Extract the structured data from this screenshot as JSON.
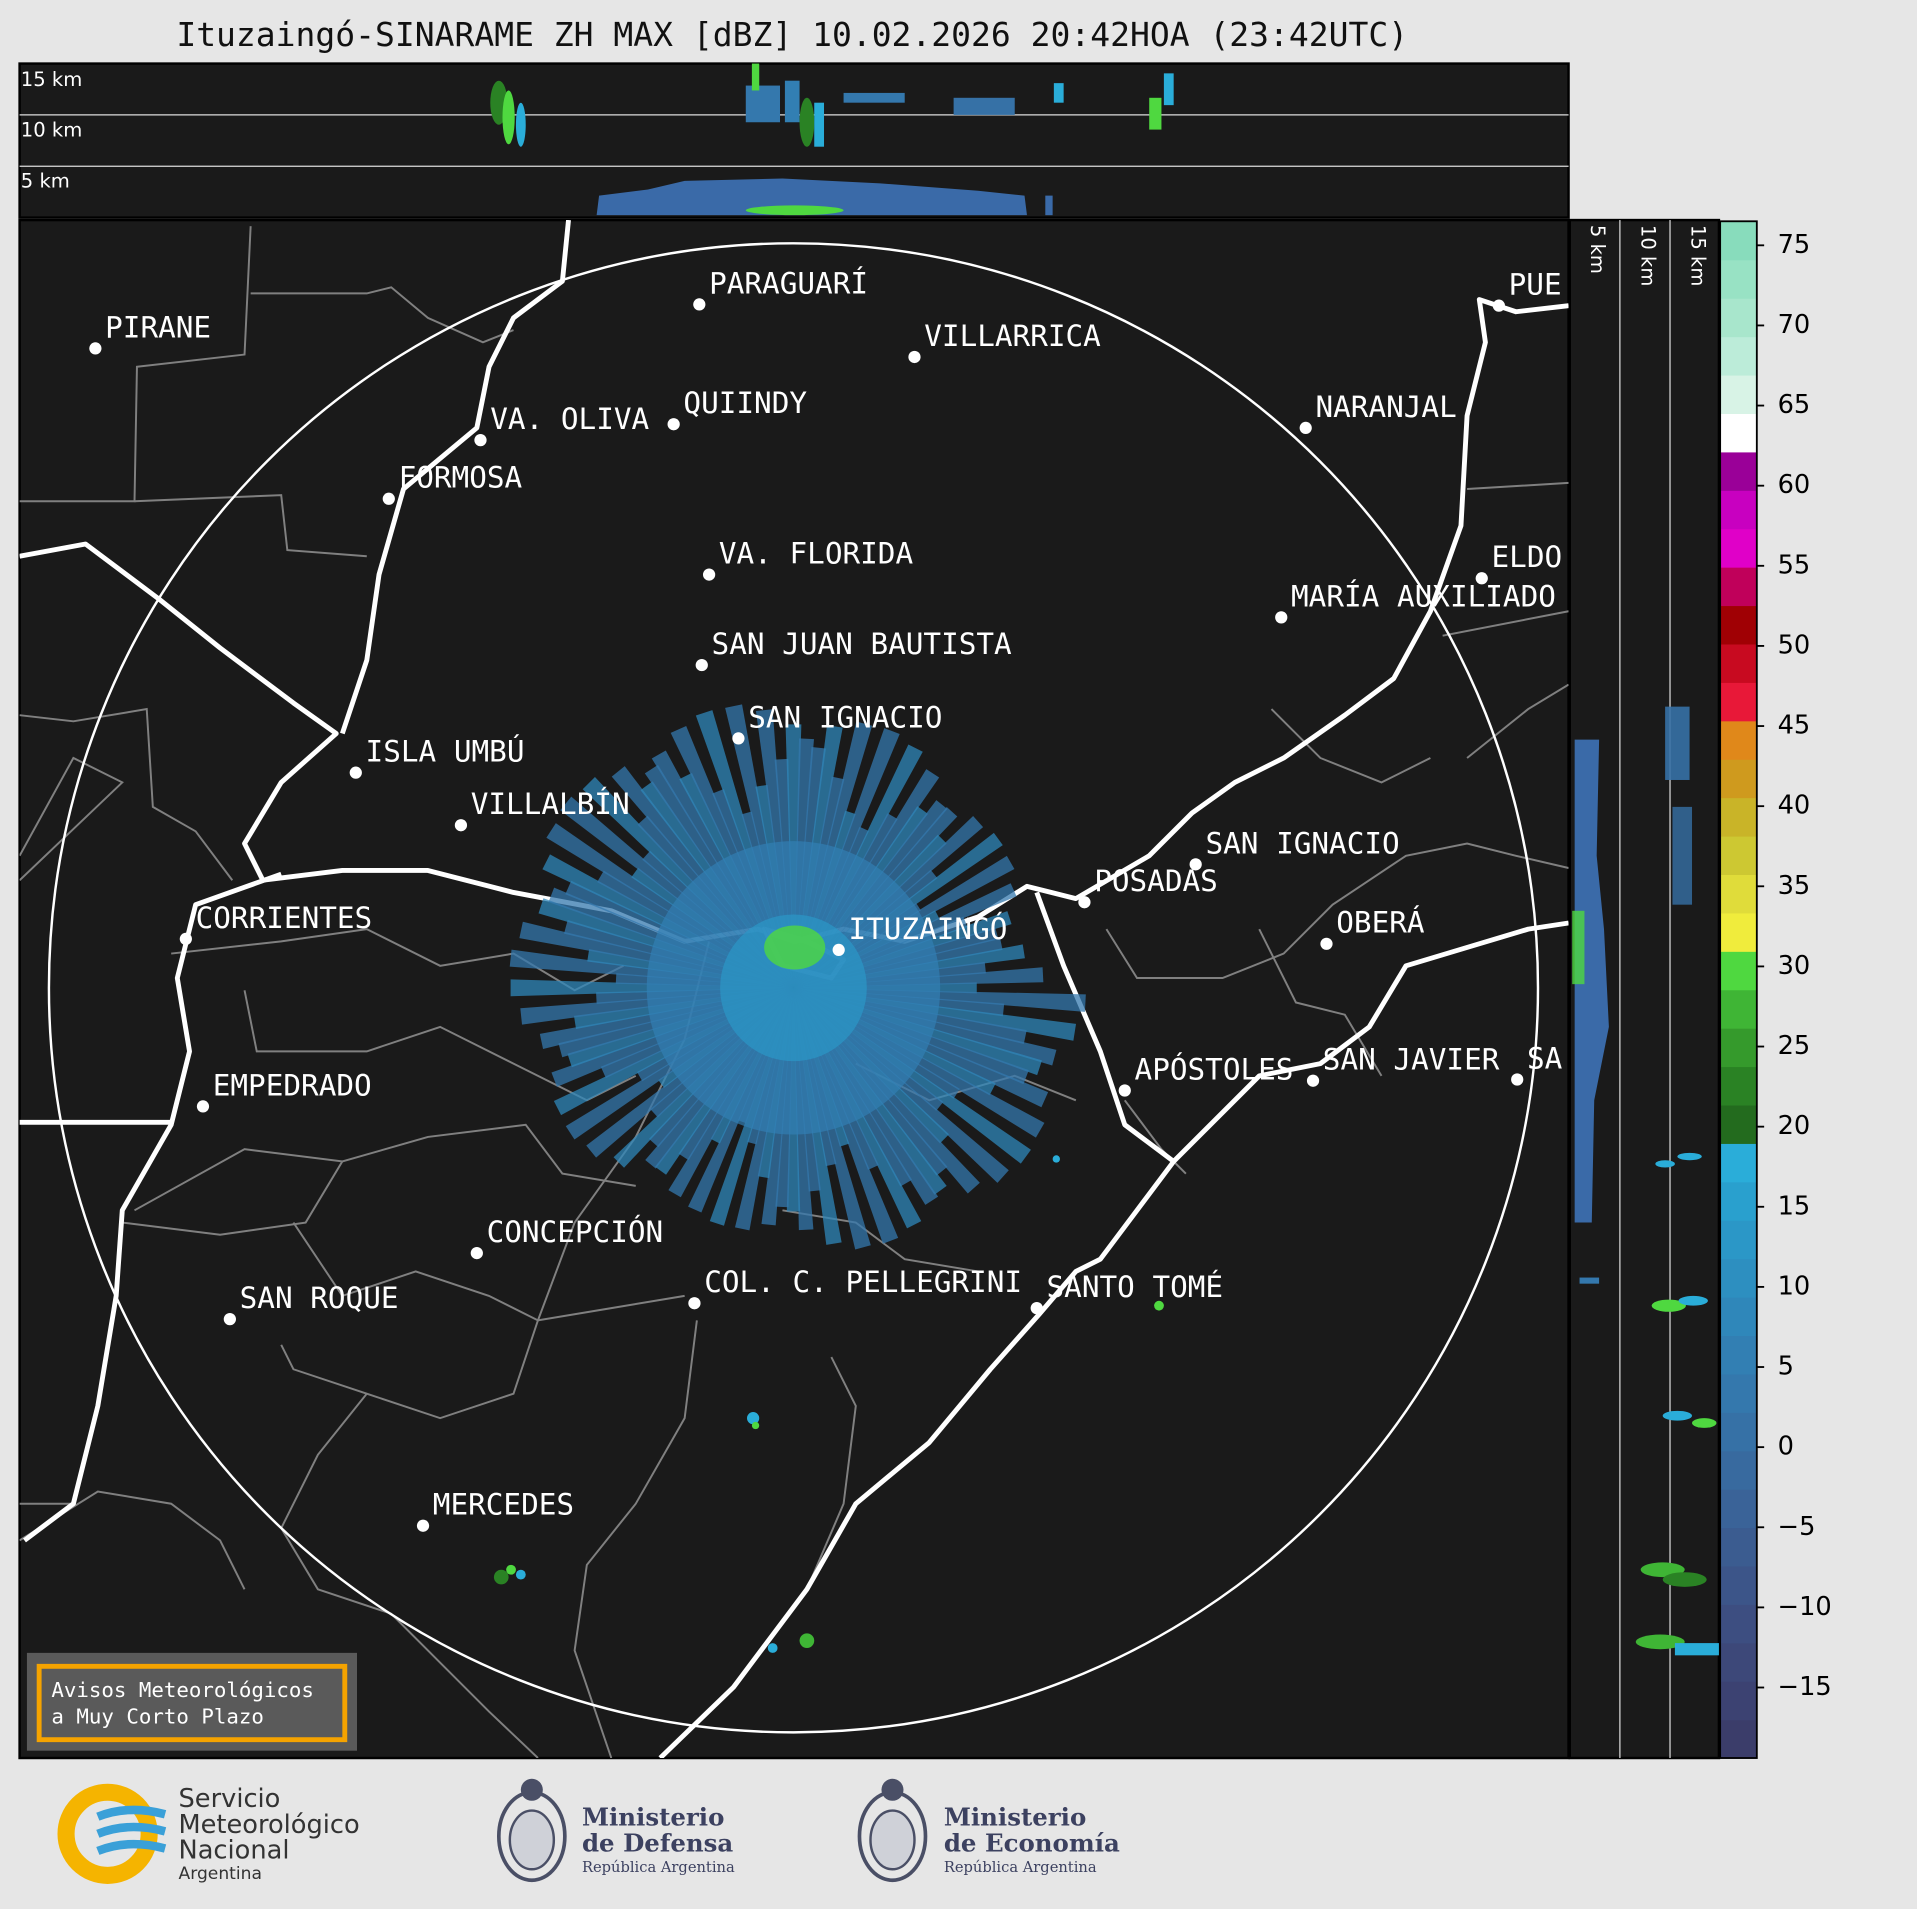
{
  "header": {
    "title": "Ituzaingó-SINARAME ZH MAX [dBZ] 10.02.2026 20:42HOA (23:42UTC)"
  },
  "profile_top": {
    "height_labels": [
      "15 km",
      "10 km",
      "5 km"
    ]
  },
  "profile_right": {
    "height_labels": [
      "5 km",
      "10 km",
      "15 km"
    ]
  },
  "map": {
    "cities": [
      "PIRANE",
      "PARAGUARÍ",
      "VILLARRICA",
      "VA. OLIVA",
      "QUIINDY",
      "NARANJAL",
      "FORMOSA",
      "VA. FLORIDA",
      "PUE",
      "ELDO",
      "MARÍA AUXILIADO",
      "SAN JUAN BAUTISTA",
      "SAN IGNACIO",
      "ISLA UMBÚ",
      "VILLALBÍN",
      "SAN IGNACIO",
      "POSADAS",
      "CORRIENTES",
      "ITUZAINGÓ",
      "OBERÁ",
      "APÓSTOLES",
      "SAN JAVIER",
      "SA",
      "EMPEDRADO",
      "CONCEPCIÓN",
      "SAN ROQUE",
      "COL. C. PELLEGRINI",
      "SANTO TOMÉ",
      "MERCEDES"
    ]
  },
  "colorbar": {
    "lim": [
      -19.4,
      76.5
    ],
    "ticks": [
      75,
      70,
      65,
      60,
      55,
      50,
      45,
      40,
      35,
      30,
      25,
      20,
      15,
      10,
      5,
      0,
      {
        "value": -5,
        "label": "−5"
      },
      {
        "value": -10,
        "label": "−10"
      },
      {
        "value": -15,
        "label": "−15"
      }
    ],
    "colors": [
      "#3b3d6a",
      "#3c4272",
      "#3d4879",
      "#3d4e81",
      "#3c5589",
      "#3b5c90",
      "#3a6398",
      "#386a9f",
      "#3671a6",
      "#3478ad",
      "#327fb3",
      "#2f87ba",
      "#2d8fc0",
      "#2b97c7",
      "#29a0ce",
      "#2aadd9",
      "#236b1e",
      "#2a8224",
      "#359a2c",
      "#3fb535",
      "#4fd840",
      "#f0ec3c",
      "#e0dc3a",
      "#cdc832",
      "#c9b428",
      "#cf9a1e",
      "#e0881a",
      "#e81838",
      "#c80a20",
      "#a00004",
      "#c0005a",
      "#e000c8",
      "#c800c0",
      "#9a0098",
      "#ffffff",
      "#d8f3e6",
      "#bcecd9",
      "#a8e6cc",
      "#98e2c4",
      "#88dcbc"
    ]
  },
  "warning_button": {
    "lines": [
      "Avisos Meteorológicos",
      "a Muy Corto Plazo"
    ]
  },
  "logos": {
    "smn": [
      "Servicio",
      "Meteorológico",
      "Nacional",
      "Argentina"
    ],
    "defensa": [
      "Ministerio",
      "de Defensa",
      "República Argentina"
    ],
    "economia": [
      "Ministerio",
      "de Economía",
      "República Argentina"
    ]
  }
}
